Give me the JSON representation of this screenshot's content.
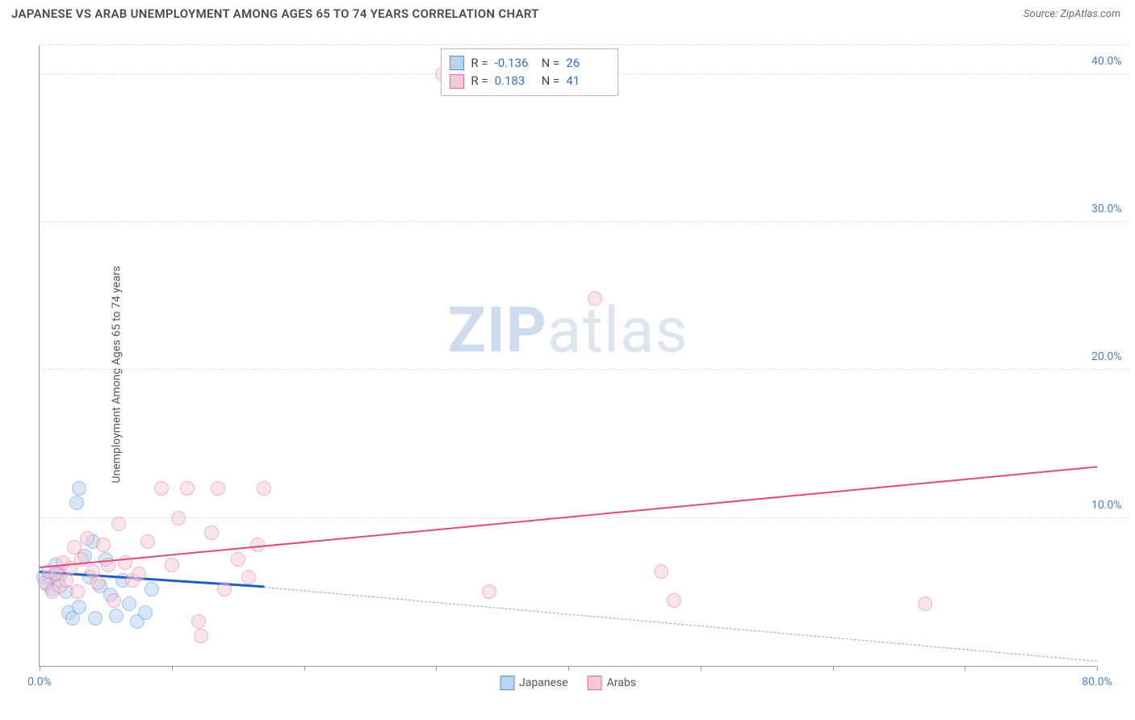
{
  "title": "JAPANESE VS ARAB UNEMPLOYMENT AMONG AGES 65 TO 74 YEARS CORRELATION CHART",
  "source_label": "Source:",
  "source_name": "ZipAtlas.com",
  "y_axis_label": "Unemployment Among Ages 65 to 74 years",
  "watermark_bold": "ZIP",
  "watermark_rest": "atlas",
  "chart": {
    "type": "scatter",
    "xlim": [
      0,
      80
    ],
    "ylim": [
      0,
      42
    ],
    "x_ticks": [
      0,
      10,
      20,
      30,
      40,
      50,
      60,
      70,
      80
    ],
    "x_tick_labels": {
      "0": "0.0%",
      "80": "80.0%"
    },
    "y_ticks": [
      10,
      20,
      30,
      40
    ],
    "y_tick_labels": {
      "10": "10.0%",
      "20": "20.0%",
      "30": "30.0%",
      "40": "40.0%"
    },
    "background_color": "#ffffff",
    "grid_color": "#dddddd",
    "axis_color": "#999999",
    "tick_label_color": "#4a7ec9",
    "marker_radius": 9,
    "marker_border_width": 1.2,
    "series": [
      {
        "name": "Japanese",
        "fill": "#b9d4f1",
        "stroke": "#5a94d8",
        "fill_opacity": 0.55,
        "R": "-0.136",
        "N": "26",
        "trend": {
          "solid": {
            "x1": 0,
            "y1": 6.3,
            "x2": 17,
            "y2": 5.3,
            "color": "#1f5fc4",
            "width": 3
          },
          "dash": {
            "x1": 17,
            "y1": 5.3,
            "x2": 80,
            "y2": 0.3,
            "color": "#7fa8e0",
            "width": 1.5
          }
        },
        "points": [
          [
            0.3,
            6.0
          ],
          [
            0.6,
            5.5
          ],
          [
            0.8,
            6.0
          ],
          [
            1.0,
            5.2
          ],
          [
            1.2,
            6.8
          ],
          [
            1.4,
            5.8
          ],
          [
            1.6,
            6.2
          ],
          [
            2.0,
            5.0
          ],
          [
            2.2,
            3.6
          ],
          [
            2.5,
            3.2
          ],
          [
            2.8,
            11.0
          ],
          [
            3.0,
            4.0
          ],
          [
            3.0,
            12.0
          ],
          [
            3.4,
            7.4
          ],
          [
            3.8,
            6.0
          ],
          [
            4.0,
            8.4
          ],
          [
            4.2,
            3.2
          ],
          [
            4.6,
            5.4
          ],
          [
            5.0,
            7.2
          ],
          [
            5.4,
            4.8
          ],
          [
            5.8,
            3.4
          ],
          [
            6.3,
            5.8
          ],
          [
            6.8,
            4.2
          ],
          [
            7.4,
            3.0
          ],
          [
            8.0,
            3.6
          ],
          [
            8.5,
            5.2
          ]
        ]
      },
      {
        "name": "Arabs",
        "fill": "#f6c8d7",
        "stroke": "#e36a94",
        "fill_opacity": 0.5,
        "R": "0.183",
        "N": "41",
        "trend": {
          "solid": {
            "x1": 0,
            "y1": 6.6,
            "x2": 80,
            "y2": 13.4,
            "color": "#e14a7e",
            "width": 2.5
          }
        },
        "points": [
          [
            0.4,
            5.6
          ],
          [
            0.7,
            6.4
          ],
          [
            1.0,
            5.0
          ],
          [
            1.3,
            6.2
          ],
          [
            1.5,
            5.4
          ],
          [
            1.8,
            7.0
          ],
          [
            2.0,
            5.8
          ],
          [
            2.3,
            6.6
          ],
          [
            2.6,
            8.0
          ],
          [
            2.9,
            5.0
          ],
          [
            3.2,
            7.2
          ],
          [
            3.6,
            8.6
          ],
          [
            4.0,
            6.4
          ],
          [
            4.4,
            5.6
          ],
          [
            4.8,
            8.2
          ],
          [
            5.2,
            6.8
          ],
          [
            5.6,
            4.4
          ],
          [
            6.0,
            9.6
          ],
          [
            6.5,
            7.0
          ],
          [
            7.0,
            5.8
          ],
          [
            7.5,
            6.2
          ],
          [
            8.2,
            8.4
          ],
          [
            9.2,
            12.0
          ],
          [
            10.0,
            6.8
          ],
          [
            10.5,
            10.0
          ],
          [
            11.2,
            12.0
          ],
          [
            12.0,
            3.0
          ],
          [
            12.2,
            2.0
          ],
          [
            13.0,
            9.0
          ],
          [
            13.5,
            12.0
          ],
          [
            14.0,
            5.2
          ],
          [
            15.0,
            7.2
          ],
          [
            15.8,
            6.0
          ],
          [
            16.5,
            8.2
          ],
          [
            17.0,
            12.0
          ],
          [
            30.5,
            40.0
          ],
          [
            34.0,
            5.0
          ],
          [
            42.0,
            24.8
          ],
          [
            47.0,
            6.4
          ],
          [
            48.0,
            4.4
          ],
          [
            67.0,
            4.2
          ]
        ]
      }
    ],
    "stats_box": {
      "left_pct": 38,
      "top_pct": 0.5
    },
    "bottom_legend": [
      {
        "label": "Japanese",
        "fill": "#b9d4f1",
        "stroke": "#5a94d8"
      },
      {
        "label": "Arabs",
        "fill": "#f6c8d7",
        "stroke": "#e36a94"
      }
    ]
  }
}
